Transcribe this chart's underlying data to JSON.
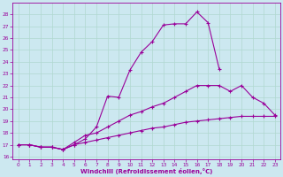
{
  "xlabel": "Windchill (Refroidissement éolien,°C)",
  "bg_color": "#cce8f0",
  "line_color": "#990099",
  "xlim": [
    -0.5,
    23.5
  ],
  "ylim": [
    15.8,
    29.0
  ],
  "xticks": [
    0,
    1,
    2,
    3,
    4,
    5,
    6,
    7,
    8,
    9,
    10,
    11,
    12,
    13,
    14,
    15,
    16,
    17,
    18,
    19,
    20,
    21,
    22,
    23
  ],
  "yticks": [
    16,
    17,
    18,
    19,
    20,
    21,
    22,
    23,
    24,
    25,
    26,
    27,
    28
  ],
  "series": [
    {
      "x": [
        0,
        1,
        2,
        3,
        4,
        5,
        6,
        7,
        8,
        9,
        10,
        11,
        12,
        13,
        14,
        15,
        16,
        17,
        18
      ],
      "y": [
        17.0,
        17.0,
        16.8,
        16.8,
        16.6,
        17.0,
        17.5,
        18.5,
        21.1,
        21.0,
        23.3,
        24.8,
        25.7,
        27.1,
        27.2,
        27.2,
        28.2,
        27.3,
        23.4
      ]
    },
    {
      "x": [
        0,
        1,
        2,
        3,
        4,
        5,
        6,
        7,
        8,
        9,
        10,
        11,
        12,
        13,
        14,
        15,
        16,
        17,
        18,
        19,
        20,
        21,
        22,
        23
      ],
      "y": [
        17.0,
        17.0,
        16.8,
        16.8,
        16.6,
        17.2,
        17.8,
        18.0,
        18.5,
        19.0,
        19.5,
        19.8,
        20.2,
        20.5,
        21.0,
        21.5,
        22.0,
        22.0,
        22.0,
        21.5,
        22.0,
        21.0,
        20.5,
        19.5
      ]
    },
    {
      "x": [
        0,
        1,
        2,
        3,
        4,
        5,
        6,
        7,
        8,
        9,
        10,
        11,
        12,
        13,
        14,
        15,
        16,
        17,
        18,
        19,
        20,
        21,
        22,
        23
      ],
      "y": [
        17.0,
        17.0,
        16.8,
        16.8,
        16.6,
        17.0,
        17.2,
        17.4,
        17.6,
        17.8,
        18.0,
        18.2,
        18.4,
        18.5,
        18.7,
        18.9,
        19.0,
        19.1,
        19.2,
        19.3,
        19.4,
        19.4,
        19.4,
        19.4
      ]
    }
  ],
  "grid_color": "#b0d8d0",
  "marker": "+"
}
